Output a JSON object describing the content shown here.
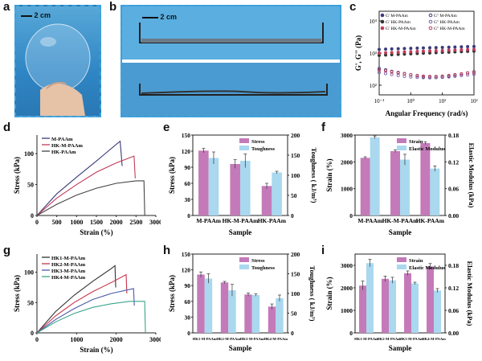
{
  "panels": {
    "a": {
      "label": "a",
      "scale": "2 cm"
    },
    "b": {
      "label": "b",
      "scale": "2 cm"
    },
    "c": {
      "label": "c"
    },
    "d": {
      "label": "d"
    },
    "e": {
      "label": "e"
    },
    "f": {
      "label": "f"
    },
    "g": {
      "label": "g"
    },
    "h": {
      "label": "h"
    },
    "i": {
      "label": "i"
    }
  },
  "colors": {
    "m_paam": "#3b3b7a",
    "hk_m_paam": "#c23b5a",
    "hk_paam": "#444444",
    "hk1": "#333333",
    "hk2": "#c8324a",
    "hk3": "#4a5aa8",
    "hk4": "#3aa58a",
    "bar_pink": "#c47ab8",
    "bar_blue": "#a9d8ef",
    "frame": "#3aa0dd"
  },
  "chart_data": [
    {
      "id": "c",
      "type": "scatter",
      "xlabel": "Angular Frequency (rad/s)",
      "ylabel": "G', G'' (Pa)",
      "xscale": "log",
      "yscale": "log",
      "xlim": [
        0.1,
        100
      ],
      "ylim": [
        50,
        20000
      ],
      "xticks": [
        "10⁻¹",
        "10⁰",
        "10¹",
        "10²"
      ],
      "yticks": [
        "10²",
        "10³",
        "10⁴"
      ],
      "legend": [
        "G'  M-PAAm",
        "G''  M-PAAm",
        "G'  HK-PAAm",
        "G''  HK-PAAm",
        "G'  HK-M-PAAm",
        "G''  HK-M-PAAm"
      ],
      "series": [
        {
          "name": "G'  M-PAAm",
          "values": [
            1300,
            1320,
            1340,
            1360,
            1380,
            1400,
            1420,
            1440,
            1460,
            1480,
            1500,
            1520,
            1540,
            1560,
            1580,
            1600
          ]
        },
        {
          "name": "G''  M-PAAm",
          "values": [
            330,
            300,
            270,
            250,
            230,
            210,
            195,
            180,
            175,
            175,
            180,
            190,
            205,
            220,
            240,
            260
          ]
        },
        {
          "name": "G'  HK-PAAm",
          "values": [
            850,
            870,
            890,
            910,
            930,
            950,
            970,
            990,
            1010,
            1030,
            1050,
            1070,
            1090,
            1110,
            1130,
            1150
          ]
        },
        {
          "name": "G''  HK-PAAm",
          "values": [
            250,
            230,
            215,
            200,
            190,
            182,
            176,
            172,
            170,
            172,
            176,
            182,
            190,
            200,
            210,
            220
          ]
        },
        {
          "name": "G'  HK-M-PAAm",
          "values": [
            1000,
            1020,
            1040,
            1060,
            1080,
            1100,
            1120,
            1140,
            1160,
            1180,
            1200,
            1220,
            1240,
            1260,
            1280,
            1300
          ]
        },
        {
          "name": "G''  HK-M-PAAm",
          "values": [
            300,
            280,
            260,
            240,
            225,
            212,
            200,
            192,
            188,
            188,
            192,
            200,
            212,
            225,
            240,
            255
          ]
        }
      ],
      "x": [
        0.1,
        0.16,
        0.25,
        0.4,
        0.63,
        1,
        1.6,
        2.5,
        4,
        6.3,
        10,
        16,
        25,
        40,
        63,
        100
      ]
    },
    {
      "id": "d",
      "type": "line",
      "xlabel": "Strain (%)",
      "ylabel": "Stress (kPa)",
      "xlim": [
        0,
        3000
      ],
      "ylim": [
        0,
        130
      ],
      "xticks": [
        "0",
        "500",
        "1000",
        "1500",
        "2000",
        "2500",
        "3000"
      ],
      "yticks": [
        "0",
        "50",
        "100"
      ],
      "legend": [
        "M-PAAm",
        "HK-M-PAAm",
        "HK-PAAm"
      ],
      "series": [
        {
          "name": "M-PAAm",
          "x": [
            0,
            500,
            1000,
            1500,
            2000,
            2100,
            2150
          ],
          "y": [
            0,
            35,
            62,
            88,
            115,
            120,
            80
          ]
        },
        {
          "name": "HK-M-PAAm",
          "x": [
            0,
            500,
            1000,
            1500,
            2000,
            2450,
            2480
          ],
          "y": [
            0,
            28,
            50,
            70,
            85,
            96,
            60
          ]
        },
        {
          "name": "HK-PAAm",
          "x": [
            0,
            500,
            1000,
            1500,
            2000,
            2500,
            2700,
            2720
          ],
          "y": [
            0,
            18,
            33,
            44,
            52,
            56,
            56,
            0
          ]
        }
      ]
    },
    {
      "id": "e",
      "type": "bar",
      "xlabel": "Sample",
      "ylabel": "Stress (kPa)",
      "y2label": "Toughness ( kJ/m³)",
      "categories": [
        "M-PAAm",
        "HK-M-PAAm",
        "HK-PAAm"
      ],
      "ylim": [
        0,
        150
      ],
      "y2lim": [
        0,
        200
      ],
      "yticks": [
        "0",
        "30",
        "60",
        "90",
        "120",
        "150"
      ],
      "y2ticks": [
        "0",
        "50",
        "100",
        "150",
        "200"
      ],
      "legend": [
        "Stress",
        "Toughness"
      ],
      "series": [
        {
          "name": "Stress",
          "values": [
            121,
            96,
            55
          ],
          "err": [
            4,
            8,
            5
          ]
        },
        {
          "name": "Toughness",
          "values": [
            143,
            136,
            107
          ],
          "err": [
            15,
            17,
            3
          ]
        }
      ]
    },
    {
      "id": "f",
      "type": "bar",
      "xlabel": "Sample",
      "ylabel": "Strain (%)",
      "y2label": "Elastic Modulus (kPa)",
      "categories": [
        "M-PAAm",
        "HK-M-PAAm",
        "HK-PAAm"
      ],
      "ylim": [
        0,
        3000
      ],
      "y2lim": [
        0,
        0.18
      ],
      "yticks": [
        "0",
        "1000",
        "2000",
        "3000"
      ],
      "y2ticks": [
        "0.00",
        "0.06",
        "0.12",
        "0.18"
      ],
      "legend": [
        "Strain",
        "Elastic Modulus"
      ],
      "series": [
        {
          "name": "Strain",
          "values": [
            2150,
            2400,
            2700
          ],
          "err": [
            40,
            50,
            50
          ]
        },
        {
          "name": "Elastic Modulus",
          "values": [
            0.175,
            0.125,
            0.105
          ],
          "err": [
            0.003,
            0.012,
            0.006
          ]
        }
      ]
    },
    {
      "id": "g",
      "type": "line",
      "xlabel": "Strain (%)",
      "ylabel": "Stress (kPa)",
      "xlim": [
        0,
        3200
      ],
      "ylim": [
        0,
        130
      ],
      "xticks": [
        "0",
        "1000",
        "2000",
        "3000"
      ],
      "yticks": [
        "0",
        "50",
        "100"
      ],
      "legend": [
        "HK1-M-PAAm",
        "HK2-M-PAAm",
        "HK3-M-PAAm",
        "HK4-M-PAAm"
      ],
      "series": [
        {
          "name": "HK1-M-PAAm",
          "x": [
            0,
            500,
            1000,
            1500,
            2000,
            2100,
            2120
          ],
          "y": [
            0,
            35,
            62,
            85,
            106,
            111,
            75
          ]
        },
        {
          "name": "HK2-M-PAAm",
          "x": [
            0,
            500,
            1000,
            1500,
            2000,
            2400,
            2420
          ],
          "y": [
            0,
            28,
            50,
            68,
            83,
            96,
            65
          ]
        },
        {
          "name": "HK3-M-PAAm",
          "x": [
            0,
            500,
            1000,
            1500,
            2000,
            2600,
            2620
          ],
          "y": [
            0,
            22,
            40,
            55,
            65,
            73,
            45
          ]
        },
        {
          "name": "HK4-M-PAAm",
          "x": [
            0,
            500,
            1000,
            1500,
            2000,
            2500,
            2900,
            2920
          ],
          "y": [
            0,
            18,
            32,
            42,
            48,
            52,
            52,
            0
          ]
        }
      ]
    },
    {
      "id": "h",
      "type": "bar",
      "xlabel": "Sample",
      "ylabel": "Stress (kPa)",
      "y2label": "Toughness ( kJ/m³)",
      "categories": [
        "HK1-M-PAAm",
        "HK2-M-PAAm",
        "HK3-M-PAAm",
        "HK4-M-PAAm"
      ],
      "ylim": [
        0,
        150
      ],
      "y2lim": [
        0,
        200
      ],
      "yticks": [
        "0",
        "30",
        "60",
        "90",
        "120",
        "150"
      ],
      "y2ticks": [
        "0",
        "50",
        "100",
        "150",
        "200"
      ],
      "legend": [
        "Stress",
        "Toughness"
      ],
      "series": [
        {
          "name": "Stress",
          "values": [
            111,
            96,
            73,
            50
          ],
          "err": [
            5,
            2,
            3,
            5
          ]
        },
        {
          "name": "Toughness",
          "values": [
            138,
            108,
            96,
            88
          ],
          "err": [
            12,
            15,
            3,
            8
          ]
        }
      ]
    },
    {
      "id": "i",
      "type": "bar",
      "xlabel": "Sample",
      "ylabel": "Strain (%)",
      "y2label": "Elastic Modulus (kPa)",
      "categories": [
        "HK1-M-PAAm",
        "HK2-M-PAAm",
        "HK3-M-PAAm",
        "HK4-M-PAAm"
      ],
      "ylim": [
        0,
        3500
      ],
      "y2lim": [
        0,
        0.21
      ],
      "yticks": [
        "0",
        "1000",
        "2000",
        "3000"
      ],
      "y2ticks": [
        "0.00",
        "0.06",
        "0.12",
        "0.18"
      ],
      "legend": [
        "Strain",
        "Elastic Modulus"
      ],
      "series": [
        {
          "name": "Strain",
          "values": [
            2100,
            2400,
            2650,
            2950
          ],
          "err": [
            200,
            120,
            100,
            130
          ]
        },
        {
          "name": "Elastic Modulus",
          "values": [
            0.186,
            0.14,
            0.132,
            0.113
          ],
          "err": [
            0.01,
            0.008,
            0.003,
            0.005
          ]
        }
      ]
    }
  ]
}
